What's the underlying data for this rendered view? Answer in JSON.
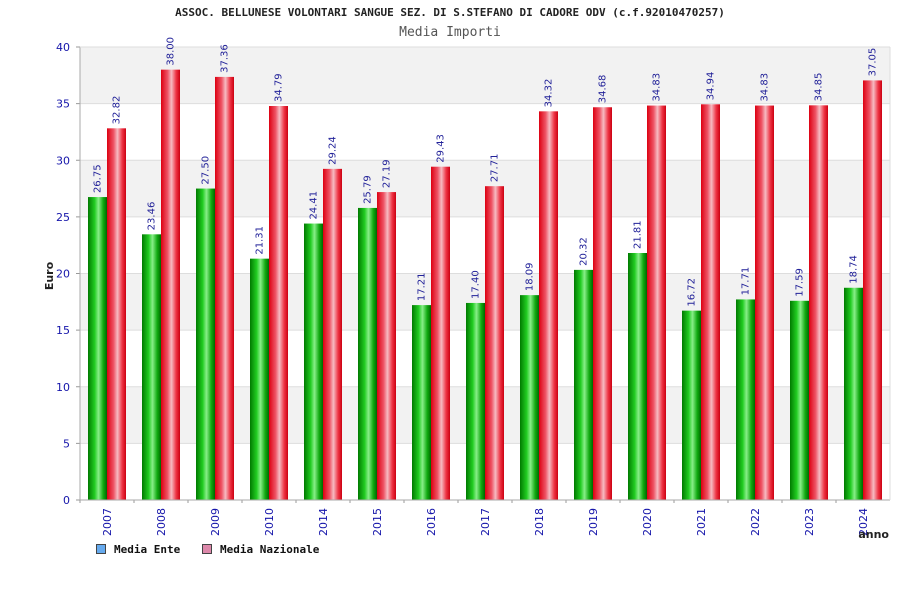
{
  "chart_data": {
    "type": "bar",
    "title": "ASSOC. BELLUNESE VOLONTARI SANGUE SEZ. DI S.STEFANO DI CADORE ODV (c.f.92010470257)",
    "subtitle": "Media Importi",
    "xlabel": "anno",
    "ylabel": "Euro",
    "ylim": [
      0,
      40
    ],
    "yticks": [
      0,
      5,
      10,
      15,
      20,
      25,
      30,
      35,
      40
    ],
    "grid": true,
    "legend_position": "bottom-left",
    "categories": [
      "2007",
      "2008",
      "2009",
      "2010",
      "2014",
      "2015",
      "2016",
      "2017",
      "2018",
      "2019",
      "2020",
      "2021",
      "2022",
      "2023",
      "2024"
    ],
    "series": [
      {
        "name": "Media Ente",
        "color": "#16b016",
        "legend_color": "#66aaee",
        "values": [
          26.75,
          23.46,
          27.5,
          21.31,
          24.41,
          25.79,
          17.21,
          17.4,
          18.09,
          20.32,
          21.81,
          16.72,
          17.71,
          17.59,
          18.74
        ],
        "labels": [
          "26.75",
          "23.46",
          "27.50",
          "21.31",
          "24.41",
          "25.79",
          "17.21",
          "17.40",
          "18.09",
          "20.32",
          "21.81",
          "16.72",
          "17.71",
          "17.59",
          "18.74"
        ]
      },
      {
        "name": "Media Nazionale",
        "color": "#ee2233",
        "legend_color": "#dd88aa",
        "values": [
          32.82,
          38.0,
          37.36,
          34.79,
          29.24,
          27.19,
          29.43,
          27.71,
          34.32,
          34.68,
          34.83,
          34.94,
          34.83,
          34.85,
          37.05
        ],
        "labels": [
          "32.82",
          "38.00",
          "37.36",
          "34.79",
          "29.24",
          "27.19",
          "29.43",
          "27.71",
          "34.32",
          "34.68",
          "34.83",
          "34.94",
          "34.83",
          "34.85",
          "37.05"
        ]
      }
    ]
  }
}
